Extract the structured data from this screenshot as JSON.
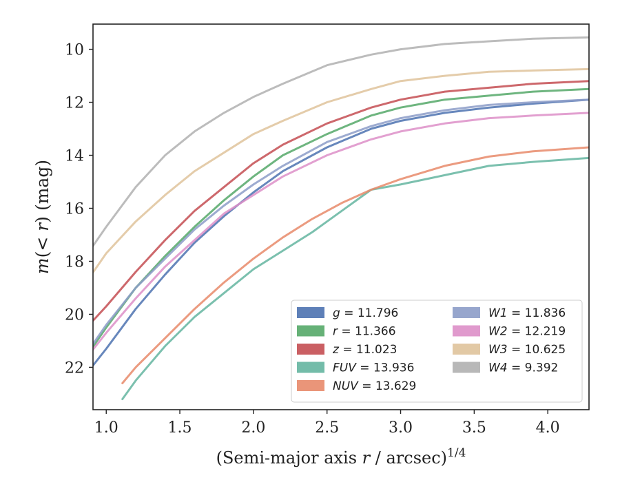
{
  "chart_data": {
    "type": "line",
    "title": "",
    "xlabel": "(Semi-major axis r / arcsec)^{1/4}",
    "ylabel": "m(< r) (mag)",
    "xlim": [
      0.91,
      4.28
    ],
    "ylim": [
      23.6,
      9.05
    ],
    "y_inverted": true,
    "x_ticks": [
      "1.0",
      "1.5",
      "2.0",
      "2.5",
      "3.0",
      "3.5",
      "4.0"
    ],
    "y_ticks": [
      "10",
      "12",
      "14",
      "16",
      "18",
      "20",
      "22"
    ],
    "grid": false,
    "legend_position": "lower-right",
    "legend_columns": 2,
    "series": [
      {
        "name": "g = 11.796",
        "band": "g",
        "value": "11.796",
        "color": "#4c72b0",
        "x": [
          0.9,
          1.0,
          1.2,
          1.4,
          1.6,
          1.8,
          2.0,
          2.2,
          2.5,
          2.8,
          3.0,
          3.3,
          3.6,
          3.9,
          4.28
        ],
        "y": [
          22.0,
          21.3,
          19.8,
          18.5,
          17.3,
          16.3,
          15.4,
          14.6,
          13.7,
          13.0,
          12.7,
          12.4,
          12.2,
          12.05,
          11.9
        ]
      },
      {
        "name": "r = 11.366",
        "band": "r",
        "value": "11.366",
        "color": "#55a868",
        "x": [
          0.9,
          1.0,
          1.2,
          1.4,
          1.6,
          1.8,
          2.0,
          2.2,
          2.5,
          2.8,
          3.0,
          3.3,
          3.6,
          3.9,
          4.28
        ],
        "y": [
          21.3,
          20.5,
          19.0,
          17.8,
          16.7,
          15.7,
          14.8,
          14.0,
          13.2,
          12.5,
          12.2,
          11.9,
          11.75,
          11.6,
          11.5
        ]
      },
      {
        "name": "z = 11.023",
        "band": "z",
        "value": "11.023",
        "color": "#c44e52",
        "x": [
          0.9,
          1.0,
          1.2,
          1.4,
          1.6,
          1.8,
          2.0,
          2.2,
          2.5,
          2.8,
          3.0,
          3.3,
          3.6,
          3.9,
          4.28
        ],
        "y": [
          20.3,
          19.7,
          18.4,
          17.2,
          16.1,
          15.2,
          14.3,
          13.6,
          12.8,
          12.2,
          11.9,
          11.6,
          11.45,
          11.3,
          11.2
        ]
      },
      {
        "name": "FUV = 13.936",
        "band": "FUV",
        "value": "13.936",
        "color": "#64b5a0",
        "x": [
          1.11,
          1.2,
          1.4,
          1.6,
          1.8,
          2.0,
          2.2,
          2.4,
          2.5,
          2.7,
          2.8,
          3.0,
          3.3,
          3.6,
          3.9,
          4.28
        ],
        "y": [
          23.2,
          22.5,
          21.2,
          20.1,
          19.2,
          18.3,
          17.6,
          16.9,
          16.5,
          15.7,
          15.3,
          15.1,
          14.75,
          14.4,
          14.25,
          14.1
        ]
      },
      {
        "name": "NUV = 13.629",
        "band": "NUV",
        "value": "13.629",
        "color": "#e8896a",
        "x": [
          1.11,
          1.2,
          1.4,
          1.6,
          1.8,
          2.0,
          2.2,
          2.4,
          2.6,
          2.8,
          3.0,
          3.3,
          3.6,
          3.9,
          4.28
        ],
        "y": [
          22.6,
          22.0,
          20.9,
          19.8,
          18.8,
          17.9,
          17.1,
          16.4,
          15.8,
          15.3,
          14.9,
          14.4,
          14.05,
          13.85,
          13.7
        ]
      },
      {
        "name": "W1 = 11.836",
        "band": "W1",
        "value": "11.836",
        "color": "#8c9cc8",
        "x": [
          0.9,
          1.0,
          1.2,
          1.4,
          1.6,
          1.8,
          2.0,
          2.2,
          2.5,
          2.8,
          3.0,
          3.3,
          3.6,
          3.9,
          4.28
        ],
        "y": [
          21.2,
          20.4,
          19.0,
          17.9,
          16.8,
          15.9,
          15.1,
          14.4,
          13.5,
          12.9,
          12.6,
          12.3,
          12.1,
          12.0,
          11.9
        ]
      },
      {
        "name": "W2 = 12.219",
        "band": "W2",
        "value": "12.219",
        "color": "#dd8fc8",
        "x": [
          0.9,
          1.0,
          1.2,
          1.4,
          1.6,
          1.8,
          2.0,
          2.2,
          2.5,
          2.8,
          3.0,
          3.3,
          3.6,
          3.9,
          4.28
        ],
        "y": [
          21.4,
          20.7,
          19.4,
          18.2,
          17.2,
          16.2,
          15.5,
          14.8,
          14.0,
          13.4,
          13.1,
          12.8,
          12.6,
          12.5,
          12.4
        ]
      },
      {
        "name": "W3 = 10.625",
        "band": "W3",
        "value": "10.625",
        "color": "#dfc39b",
        "x": [
          0.9,
          1.0,
          1.2,
          1.4,
          1.6,
          1.8,
          2.0,
          2.2,
          2.5,
          2.8,
          3.0,
          3.3,
          3.6,
          3.9,
          4.28
        ],
        "y": [
          18.5,
          17.7,
          16.5,
          15.5,
          14.6,
          13.9,
          13.2,
          12.7,
          12.0,
          11.5,
          11.2,
          11.0,
          10.85,
          10.8,
          10.75
        ]
      },
      {
        "name": "W4 = 9.392",
        "band": "W4",
        "value": "9.392",
        "color": "#b0b0b0",
        "x": [
          0.9,
          1.0,
          1.2,
          1.4,
          1.6,
          1.8,
          2.0,
          2.2,
          2.5,
          2.8,
          3.0,
          3.3,
          3.6,
          3.9,
          4.28
        ],
        "y": [
          17.5,
          16.7,
          15.2,
          14.0,
          13.1,
          12.4,
          11.8,
          11.3,
          10.6,
          10.2,
          10.0,
          9.8,
          9.7,
          9.6,
          9.55
        ]
      }
    ]
  }
}
